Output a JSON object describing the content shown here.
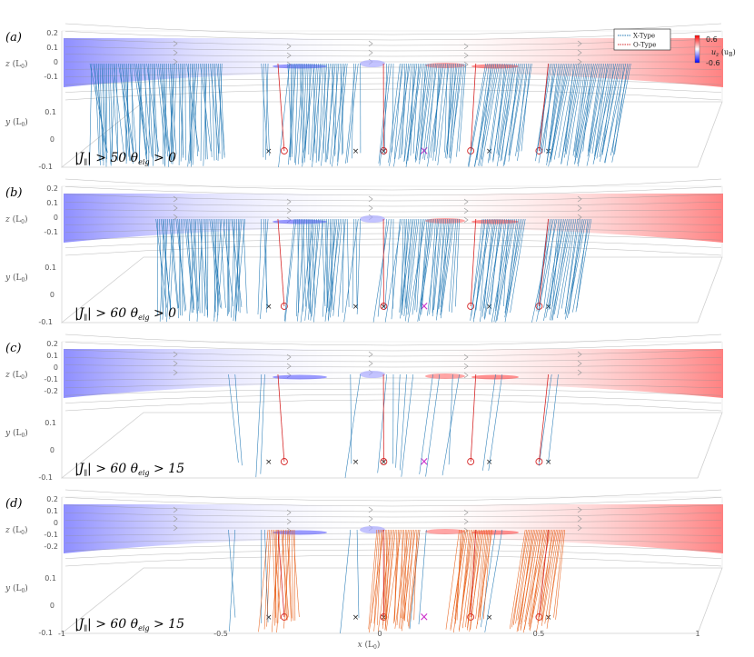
{
  "chart_data": {
    "type": "3d-field-line-panels",
    "legend": {
      "placement": "top-right",
      "entries": [
        {
          "name": "X-Type",
          "color": "#1f77b4"
        },
        {
          "name": "O-Type",
          "color": "#d62728"
        }
      ]
    },
    "colorbar": {
      "label": "u_z (u_B)",
      "label_main": "u",
      "label_sub": "z",
      "label_unit": "(u",
      "label_unit_sub": "B",
      "label_close": ")",
      "max_label": "0.6",
      "min_label": "-0.6",
      "range": [
        -0.6,
        0.6
      ],
      "colors": [
        "#0000ff",
        "#ffffff",
        "#ff0000"
      ]
    },
    "x_axis": {
      "label": "x",
      "unit": "(L",
      "unit_sub": "0",
      "unit_close": ")",
      "range": [
        -1,
        1
      ],
      "ticks": [
        "-1",
        "-0.5",
        "0",
        "0.5",
        "1"
      ]
    },
    "y_axis": {
      "label": "y",
      "unit": "(L",
      "unit_sub": "0",
      "unit_close": ")",
      "range": [
        -0.1,
        0.1
      ],
      "ticks": [
        "0.1",
        "0",
        "-0.1"
      ]
    },
    "z_axis": {
      "label": "z",
      "unit": "(L",
      "unit_sub": "0",
      "unit_close": ")",
      "range": [
        -0.2,
        0.2
      ],
      "ticks_full": [
        "0.2",
        "0.1",
        "0",
        "-0.1",
        "-0.2"
      ],
      "ticks_short": [
        "0.2",
        "0.1",
        "0",
        "-0.1"
      ]
    },
    "null_markers_x": [
      -0.4,
      -0.35,
      -0.12,
      -0.03,
      0.1,
      0.25,
      0.31,
      0.47,
      0.5
    ],
    "null_marker_types": [
      "X",
      "O",
      "X",
      "OX",
      "M",
      "O",
      "X",
      "O",
      "X"
    ],
    "panels": [
      {
        "label": "(a)",
        "cond_j": "50",
        "cond_theta": "0",
        "cond_j_op": "> ",
        "cond_theta_op": "> ",
        "blue_regions": [
          [
            -0.92,
            -0.52
          ],
          [
            -0.4,
            -0.38
          ],
          [
            -0.32,
            -0.14
          ],
          [
            -0.12,
            -0.1
          ],
          [
            -0.02,
            0.0
          ],
          [
            0.02,
            0.22
          ],
          [
            0.28,
            0.42
          ],
          [
            0.47,
            0.72
          ]
        ],
        "red_lines": [
          -0.35,
          -0.03,
          0.25,
          0.47
        ],
        "orange_regions": []
      },
      {
        "label": "(b)",
        "cond_j": "60",
        "cond_theta": "0",
        "cond_j_op": "> ",
        "cond_theta_op": "> ",
        "blue_regions": [
          [
            -0.72,
            -0.45
          ],
          [
            -0.4,
            -0.38
          ],
          [
            -0.3,
            -0.14
          ],
          [
            -0.12,
            -0.1
          ],
          [
            -0.02,
            0.0
          ],
          [
            0.02,
            0.2
          ],
          [
            0.27,
            0.4
          ],
          [
            0.47,
            0.6
          ]
        ],
        "red_lines": [
          -0.35,
          -0.03,
          0.25,
          0.47
        ],
        "orange_regions": []
      },
      {
        "label": "(c)",
        "cond_j": "60",
        "cond_theta": "15",
        "cond_j_op": "> ",
        "cond_theta_op": "> ",
        "blue_regions": [
          [
            -0.5,
            -0.48
          ],
          [
            -0.4,
            -0.39
          ],
          [
            -0.13,
            -0.1
          ],
          [
            -0.02,
            0.0
          ],
          [
            0.02,
            0.06
          ],
          [
            0.12,
            0.14
          ],
          [
            0.18,
            0.2
          ],
          [
            0.31,
            0.33
          ],
          [
            0.48,
            0.5
          ]
        ],
        "red_lines": [
          -0.35,
          -0.03,
          0.25,
          0.47
        ],
        "orange_regions": []
      },
      {
        "label": "(d)",
        "cond_j": "60",
        "cond_theta": "15",
        "cond_j_op": "> ",
        "cond_theta_op": "> ",
        "blue_regions": [
          [
            -0.5,
            -0.48
          ],
          [
            -0.4,
            -0.39
          ],
          [
            -0.13,
            -0.11
          ],
          [
            0.08,
            0.1
          ],
          [
            0.31,
            0.33
          ]
        ],
        "red_lines": [
          -0.35,
          -0.03,
          0.25,
          0.47
        ],
        "orange_regions": [
          [
            -0.38,
            -0.3
          ],
          [
            -0.05,
            0.08
          ],
          [
            0.2,
            0.3
          ],
          [
            0.4,
            0.52
          ]
        ]
      }
    ]
  }
}
